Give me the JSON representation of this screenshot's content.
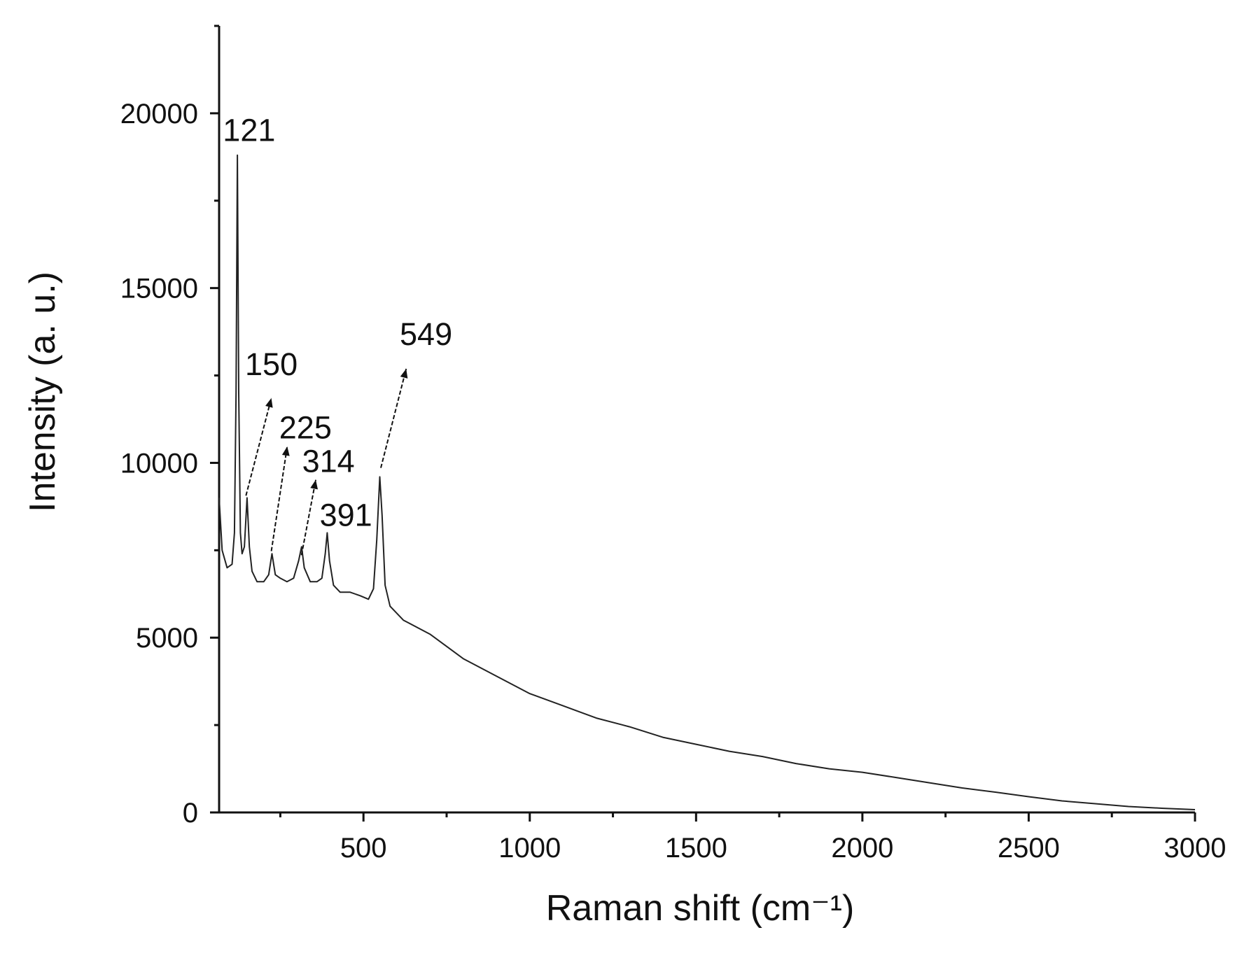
{
  "chart_data": {
    "type": "line",
    "xlabel": "Raman shift (cm⁻¹)",
    "ylabel": "Intensity (a. u.)",
    "x": [
      66,
      75,
      90,
      105,
      112,
      117,
      121,
      125,
      130,
      135,
      142,
      150,
      157,
      165,
      180,
      200,
      215,
      225,
      235,
      250,
      270,
      290,
      305,
      314,
      322,
      340,
      360,
      375,
      385,
      391,
      398,
      410,
      430,
      460,
      490,
      515,
      530,
      540,
      549,
      556,
      565,
      580,
      620,
      700,
      800,
      900,
      1000,
      1100,
      1200,
      1300,
      1400,
      1500,
      1600,
      1700,
      1800,
      1900,
      2000,
      2100,
      2200,
      2300,
      2400,
      2500,
      2600,
      2700,
      2800,
      2900,
      3000
    ],
    "values": [
      9000,
      7500,
      7000,
      7100,
      8000,
      12000,
      18800,
      12000,
      8000,
      7400,
      7600,
      9000,
      7600,
      6900,
      6600,
      6600,
      6800,
      7400,
      6800,
      6700,
      6600,
      6700,
      7200,
      7600,
      7000,
      6600,
      6600,
      6700,
      7400,
      8000,
      7200,
      6500,
      6300,
      6300,
      6200,
      6100,
      6400,
      7800,
      9600,
      8500,
      6500,
      5900,
      5500,
      5100,
      4400,
      3900,
      3400,
      3050,
      2700,
      2450,
      2150,
      1950,
      1750,
      1600,
      1400,
      1250,
      1150,
      1000,
      850,
      700,
      580,
      450,
      330,
      250,
      170,
      120,
      80
    ],
    "color": "#222222",
    "peaks": [
      121,
      150,
      225,
      314,
      391,
      549
    ],
    "xlim": [
      66,
      3000
    ],
    "xticks": [
      500,
      1000,
      1500,
      2000,
      2500,
      3000
    ],
    "xminorticks": [
      250,
      750,
      1250,
      1750,
      2250,
      2750
    ],
    "ylim": [
      0,
      22500
    ],
    "yticks": [
      0,
      5000,
      10000,
      15000,
      20000
    ],
    "yminorticks": [
      2500,
      7500,
      12500,
      17500,
      22500
    ]
  }
}
